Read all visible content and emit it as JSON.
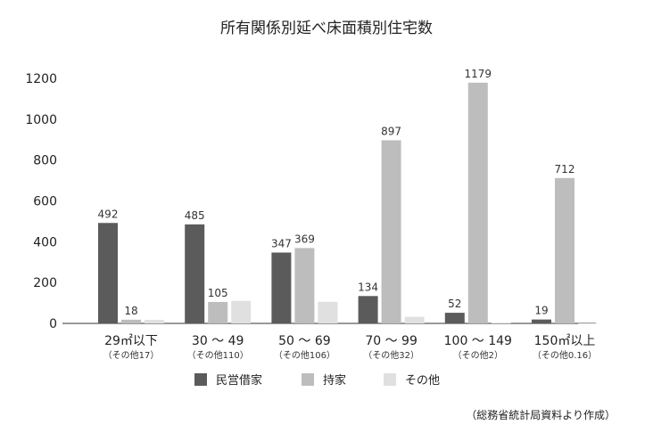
{
  "chart_data": {
    "type": "bar",
    "title": "所有関係別延べ床面積別住宅数",
    "categories": [
      "29㎡以下",
      "30 ～ 49",
      "50 ～ 69",
      "70 ～ 99",
      "100 ～ 149",
      "150㎡以上"
    ],
    "category_notes": [
      "（その他17）",
      "（その他110）",
      "（その他106）",
      "（その他32）",
      "（その他2）",
      "（その他0.16）"
    ],
    "series": [
      {
        "name": "民営借家",
        "color": "#5b5b5b",
        "values": [
          492,
          485,
          347,
          134,
          52,
          19
        ],
        "labels": [
          "492",
          "485",
          "347",
          "134",
          "52",
          "19"
        ]
      },
      {
        "name": "持家",
        "color": "#bdbdbd",
        "values": [
          18,
          105,
          369,
          897,
          1179,
          712
        ],
        "labels": [
          "18",
          "105",
          "369",
          "897",
          "1179",
          "712"
        ]
      },
      {
        "name": "その他",
        "color": "#e0e0e0",
        "values": [
          17,
          110,
          106,
          32,
          2,
          0.16
        ],
        "labels": [
          "",
          "",
          "",
          "",
          "",
          ""
        ]
      }
    ],
    "yticks": [
      0,
      200,
      400,
      600,
      800,
      1000,
      1200
    ],
    "ylim": [
      0,
      1200
    ],
    "grid": false,
    "legend_position": "bottom",
    "source": "（総務省統計局資料より作成）"
  }
}
